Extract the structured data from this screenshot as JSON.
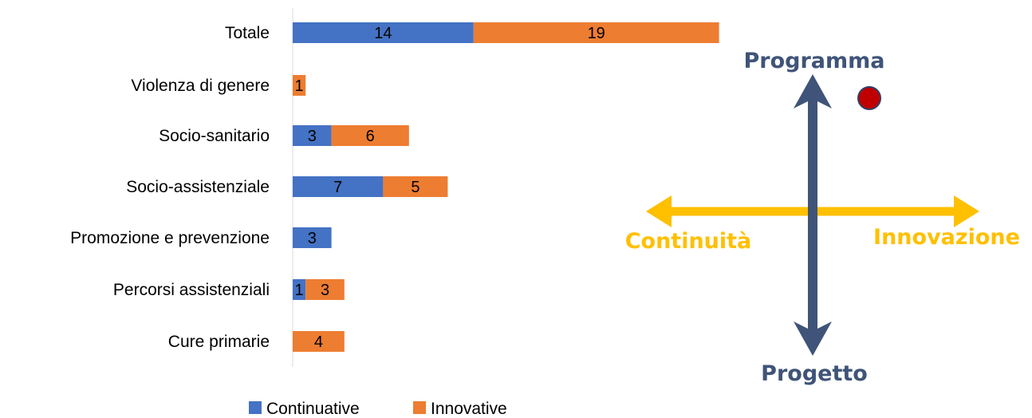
{
  "chart_data": {
    "type": "bar",
    "orientation": "horizontal",
    "stacked": true,
    "categories": [
      "Totale",
      "Violenza di genere",
      "Socio-sanitario",
      "Socio-assistenziale",
      "Promozione e prevenzione",
      "Percorsi assistenziali",
      "Cure primarie"
    ],
    "series": [
      {
        "name": "Continuative",
        "color": "#4472C4",
        "values": [
          14,
          0,
          3,
          7,
          3,
          1,
          0
        ]
      },
      {
        "name": "Innovative",
        "color": "#ED7D31",
        "values": [
          19,
          1,
          6,
          5,
          0,
          3,
          4
        ]
      }
    ],
    "title": "",
    "xlabel": "",
    "ylabel": "",
    "xlim": [
      0,
      33
    ],
    "grid": false,
    "legend_position": "bottom"
  },
  "diagram": {
    "vertical_axis": {
      "top_label": "Programma",
      "bottom_label": "Progetto",
      "color": "#3F5478"
    },
    "horizontal_axis": {
      "left_label": "Continuità",
      "right_label": "Innovazione",
      "color": "#FFC000"
    },
    "marker": {
      "color": "#C00000"
    }
  }
}
